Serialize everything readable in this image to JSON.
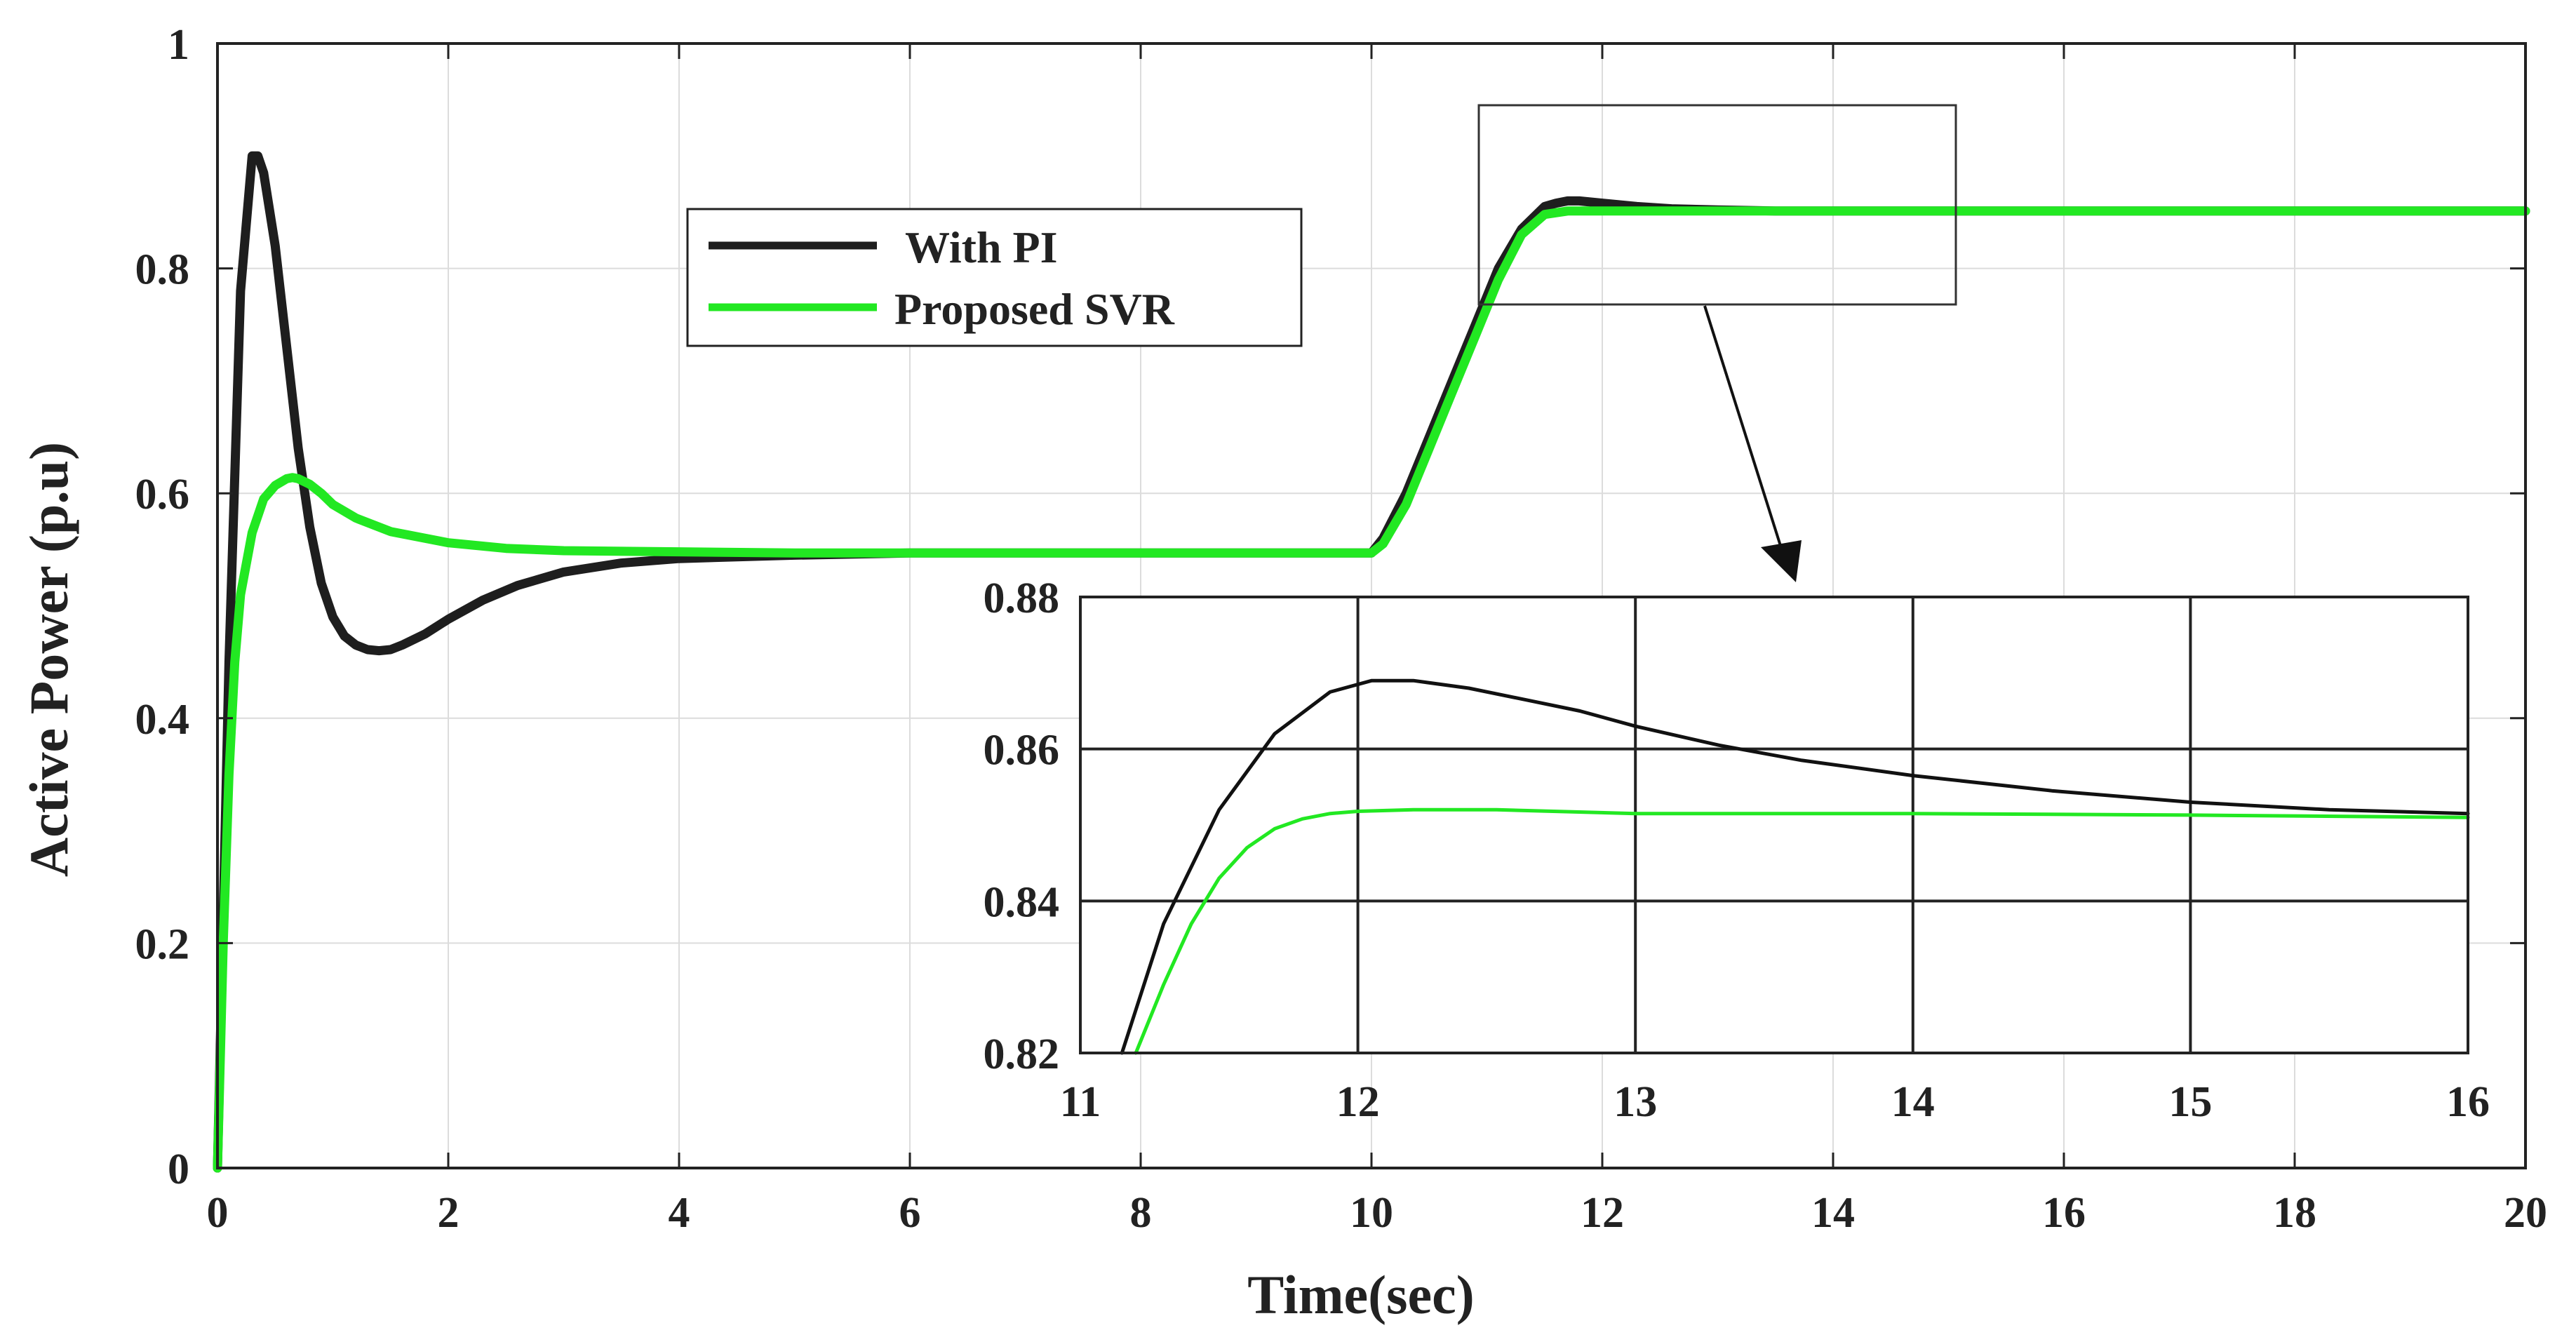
{
  "chart_data": {
    "type": "line",
    "xlabel": "Time(sec)",
    "ylabel": "Active Power (p.u)",
    "xlim": [
      0,
      20
    ],
    "ylim": [
      0,
      1
    ],
    "x_ticks": [
      0,
      2,
      4,
      6,
      8,
      10,
      12,
      14,
      16,
      18,
      20
    ],
    "x_tick_labels": [
      "0",
      "2",
      "4",
      "6",
      "8",
      "10",
      "12",
      "14",
      "16",
      "18",
      "20"
    ],
    "y_ticks": [
      0,
      0.2,
      0.4,
      0.6,
      0.8,
      1
    ],
    "y_tick_labels": [
      "0",
      "0.2",
      "0.4",
      "0.6",
      "0.8",
      "1"
    ],
    "grid": true,
    "legend_position": "top-center",
    "series": [
      {
        "name": "With PI",
        "color": "#1e1e1e",
        "x": [
          0,
          0.1,
          0.2,
          0.3,
          0.35,
          0.4,
          0.5,
          0.6,
          0.7,
          0.8,
          0.9,
          1.0,
          1.1,
          1.2,
          1.3,
          1.4,
          1.5,
          1.6,
          1.8,
          2.0,
          2.3,
          2.6,
          3.0,
          3.5,
          4.0,
          5.0,
          6.0,
          8.0,
          10.0,
          10.1,
          10.3,
          10.5,
          10.7,
          10.9,
          11.1,
          11.3,
          11.5,
          11.6,
          11.7,
          11.8,
          12.0,
          12.3,
          12.6,
          13.0,
          13.5,
          14.0,
          15.0,
          16.0,
          20.0
        ],
        "y": [
          0.0,
          0.45,
          0.78,
          0.9,
          0.9,
          0.885,
          0.82,
          0.73,
          0.64,
          0.57,
          0.52,
          0.49,
          0.473,
          0.465,
          0.461,
          0.46,
          0.461,
          0.465,
          0.475,
          0.488,
          0.505,
          0.518,
          0.53,
          0.538,
          0.542,
          0.545,
          0.547,
          0.547,
          0.547,
          0.56,
          0.6,
          0.65,
          0.7,
          0.75,
          0.8,
          0.835,
          0.855,
          0.858,
          0.86,
          0.86,
          0.858,
          0.855,
          0.853,
          0.852,
          0.851,
          0.851,
          0.851,
          0.851,
          0.851
        ]
      },
      {
        "name": "Proposed SVR",
        "color": "#22e822",
        "x": [
          0,
          0.05,
          0.1,
          0.15,
          0.2,
          0.3,
          0.4,
          0.5,
          0.6,
          0.65,
          0.7,
          0.8,
          0.9,
          1.0,
          1.2,
          1.5,
          2.0,
          2.5,
          3.0,
          4.0,
          5.0,
          6.0,
          8.0,
          10.0,
          10.1,
          10.3,
          10.5,
          10.7,
          10.9,
          11.1,
          11.3,
          11.5,
          11.7,
          12.0,
          13.0,
          20.0
        ],
        "y": [
          0.0,
          0.2,
          0.35,
          0.45,
          0.51,
          0.565,
          0.595,
          0.607,
          0.613,
          0.614,
          0.613,
          0.608,
          0.6,
          0.59,
          0.578,
          0.566,
          0.556,
          0.551,
          0.549,
          0.548,
          0.547,
          0.547,
          0.547,
          0.547,
          0.555,
          0.59,
          0.64,
          0.69,
          0.74,
          0.79,
          0.83,
          0.848,
          0.851,
          0.851,
          0.851,
          0.851
        ]
      }
    ],
    "inset": {
      "xlim": [
        11,
        16
      ],
      "ylim": [
        0.82,
        0.88
      ],
      "x_ticks": [
        11,
        12,
        13,
        14,
        15,
        16
      ],
      "x_tick_labels": [
        "11",
        "12",
        "13",
        "14",
        "15",
        "16"
      ],
      "y_ticks": [
        0.82,
        0.84,
        0.86,
        0.88
      ],
      "y_tick_labels": [
        "0.82",
        "0.84",
        "0.86",
        "0.88"
      ],
      "grid": true,
      "series": [
        {
          "name": "With PI",
          "color": "#111111",
          "x": [
            11.15,
            11.3,
            11.5,
            11.7,
            11.9,
            12.05,
            12.2,
            12.4,
            12.6,
            12.8,
            13.0,
            13.3,
            13.6,
            14.0,
            14.5,
            15.0,
            15.5,
            16.0
          ],
          "y": [
            0.82,
            0.837,
            0.852,
            0.862,
            0.8675,
            0.869,
            0.869,
            0.868,
            0.8665,
            0.865,
            0.863,
            0.8605,
            0.8585,
            0.8565,
            0.8545,
            0.853,
            0.852,
            0.8515
          ]
        },
        {
          "name": "Proposed SVR",
          "color": "#22e822",
          "x": [
            11.2,
            11.3,
            11.4,
            11.5,
            11.6,
            11.7,
            11.8,
            11.9,
            12.0,
            12.2,
            12.5,
            13.0,
            13.5,
            14.0,
            15.0,
            16.0
          ],
          "y": [
            0.82,
            0.829,
            0.837,
            0.843,
            0.847,
            0.8495,
            0.8508,
            0.8515,
            0.8518,
            0.852,
            0.852,
            0.8515,
            0.8515,
            0.8515,
            0.8513,
            0.851
          ]
        }
      ]
    }
  }
}
